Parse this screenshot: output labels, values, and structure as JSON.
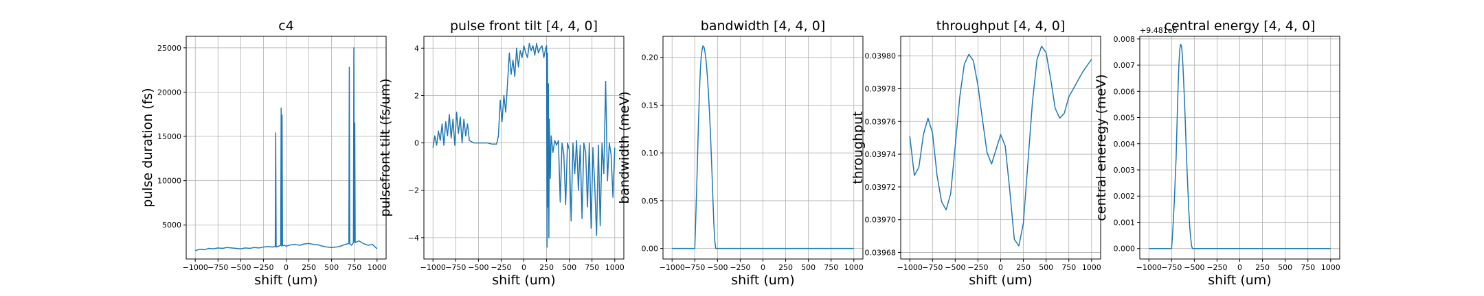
{
  "chart_data": [
    {
      "type": "line",
      "title": "c4",
      "xlabel": "shift (um)",
      "ylabel": "pulse duration (fs)",
      "xlim": [
        -1100,
        1100
      ],
      "ylim": [
        1150,
        26300
      ],
      "xticks": [
        -1000,
        -750,
        -500,
        -250,
        0,
        250,
        500,
        750,
        1000
      ],
      "yticks": [
        5000,
        10000,
        15000,
        20000,
        25000
      ],
      "grid": true,
      "color": "#1f77b4",
      "x": [
        -1000,
        -950,
        -900,
        -850,
        -800,
        -750,
        -700,
        -650,
        -600,
        -550,
        -500,
        -450,
        -400,
        -350,
        -300,
        -250,
        -200,
        -150,
        -120,
        -115,
        -110,
        -100,
        -80,
        -60,
        -55,
        -50,
        -45,
        -40,
        -30,
        -20,
        0,
        50,
        100,
        150,
        200,
        250,
        300,
        350,
        400,
        450,
        500,
        550,
        600,
        650,
        690,
        695,
        700,
        705,
        720,
        740,
        745,
        750,
        755,
        760,
        800,
        850,
        900,
        950,
        1000
      ],
      "y": [
        2100,
        2250,
        2200,
        2350,
        2300,
        2400,
        2350,
        2450,
        2400,
        2350,
        2300,
        2400,
        2350,
        2450,
        2400,
        2500,
        2550,
        2500,
        2550,
        15400,
        2500,
        2550,
        2600,
        2700,
        18200,
        2600,
        17400,
        2700,
        2650,
        2700,
        2600,
        2750,
        2800,
        2700,
        2850,
        2900,
        2800,
        2750,
        2600,
        2500,
        2450,
        2500,
        2600,
        2800,
        2900,
        22800,
        2900,
        2800,
        2700,
        3000,
        25000,
        3100,
        16500,
        3000,
        3200,
        2900,
        2700,
        2800,
        2300
      ]
    },
    {
      "type": "line",
      "title": "pulse front tilt [4, 4, 0]",
      "xlabel": "shift (um)",
      "ylabel": "pulsefront tilt (fs/um)",
      "xlim": [
        -1100,
        1100
      ],
      "ylim": [
        -4.9,
        4.5
      ],
      "xticks": [
        -1000,
        -750,
        -500,
        -250,
        0,
        250,
        500,
        750,
        1000
      ],
      "yticks": [
        -4,
        -2,
        0,
        2,
        4
      ],
      "grid": true,
      "color": "#1f77b4",
      "x": [
        -1000,
        -980,
        -960,
        -940,
        -920,
        -900,
        -880,
        -860,
        -840,
        -820,
        -800,
        -780,
        -760,
        -740,
        -720,
        -700,
        -680,
        -660,
        -640,
        -620,
        -600,
        -550,
        -500,
        -450,
        -400,
        -350,
        -300,
        -280,
        -260,
        -240,
        -220,
        -200,
        -180,
        -160,
        -140,
        -120,
        -100,
        -80,
        -60,
        -40,
        -20,
        0,
        20,
        40,
        60,
        80,
        100,
        120,
        140,
        160,
        180,
        200,
        220,
        240,
        250,
        255,
        260,
        265,
        270,
        275,
        280,
        290,
        300,
        320,
        340,
        360,
        380,
        400,
        420,
        440,
        460,
        480,
        500,
        520,
        540,
        560,
        580,
        600,
        620,
        640,
        660,
        680,
        700,
        720,
        740,
        760,
        780,
        800,
        820,
        840,
        860,
        880,
        900,
        920,
        940,
        960,
        980,
        1000
      ],
      "y": [
        -0.2,
        0.3,
        -0.1,
        0.5,
        0.1,
        0.8,
        -0.1,
        0.9,
        0.3,
        1.2,
        0.2,
        1.0,
        -0.1,
        1.3,
        0.4,
        1.1,
        0.0,
        1.0,
        0.3,
        0.8,
        0.1,
        0.0,
        0.0,
        0.0,
        0.0,
        -0.05,
        -0.05,
        0.3,
        1.8,
        0.9,
        2.0,
        1.3,
        2.5,
        3.8,
        2.9,
        3.5,
        2.8,
        4.0,
        3.2,
        3.9,
        3.6,
        4.1,
        3.8,
        3.6,
        4.2,
        3.9,
        4.1,
        3.7,
        4.2,
        3.8,
        4.0,
        4.1,
        3.6,
        4.0,
        4.1,
        -4.4,
        3.8,
        -2.7,
        2.5,
        -4.0,
        1.0,
        -1.5,
        0.3,
        -0.4,
        0.1,
        -0.1,
        0.1,
        -2.5,
        0.0,
        -0.5,
        -2.6,
        0.0,
        -0.3,
        -3.3,
        0.0,
        -1.3,
        0.1,
        -2.0,
        -0.1,
        -3.2,
        0.0,
        -0.4,
        -2.7,
        0.0,
        -3.6,
        -0.2,
        -1.8,
        -3.9,
        -0.1,
        -3.5,
        0.0,
        -1.3,
        2.6,
        -1.6,
        0.0,
        -0.5,
        -2.3,
        -0.2
      ]
    },
    {
      "type": "line",
      "title": "bandwidth [4, 4, 0]",
      "xlabel": "shift (um)",
      "ylabel": "bandwidth (meV)",
      "xlim": [
        -1100,
        1100
      ],
      "ylim": [
        -0.011,
        0.222
      ],
      "xticks": [
        -1000,
        -750,
        -500,
        -250,
        0,
        250,
        500,
        750,
        1000
      ],
      "yticks": [
        0.0,
        0.05,
        0.1,
        0.15,
        0.2
      ],
      "ytick_labels": [
        "0.00",
        "0.05",
        "0.10",
        "0.15",
        "0.20"
      ],
      "grid": true,
      "color": "#1f77b4",
      "x": [
        -1000,
        -800,
        -750,
        -740,
        -730,
        -720,
        -710,
        -700,
        -690,
        -680,
        -670,
        -660,
        -650,
        -640,
        -630,
        -620,
        -610,
        -600,
        -590,
        -580,
        -570,
        -560,
        -550,
        -540,
        -530,
        -520,
        -500,
        0,
        1000
      ],
      "y": [
        0.0,
        0.0,
        0.0,
        0.03,
        0.06,
        0.095,
        0.13,
        0.16,
        0.185,
        0.2,
        0.208,
        0.212,
        0.211,
        0.207,
        0.2,
        0.19,
        0.178,
        0.163,
        0.145,
        0.125,
        0.102,
        0.077,
        0.05,
        0.025,
        0.008,
        0.0,
        0.0,
        0.0,
        0.0
      ]
    },
    {
      "type": "line",
      "title": "throughput [4, 4, 0]",
      "xlabel": "shift (um)",
      "ylabel": "throughput",
      "xlim": [
        -1100,
        1100
      ],
      "ylim": [
        0.039676,
        0.039812
      ],
      "xticks": [
        -1000,
        -750,
        -500,
        -250,
        0,
        250,
        500,
        750,
        1000
      ],
      "yticks": [
        0.03968,
        0.0397,
        0.03972,
        0.03974,
        0.03976,
        0.03978,
        0.0398
      ],
      "ytick_labels": [
        "0.03968",
        "0.03970",
        "0.03972",
        "0.03974",
        "0.03976",
        "0.03978",
        "0.03980"
      ],
      "grid": true,
      "color": "#1f77b4",
      "x": [
        -1000,
        -950,
        -900,
        -850,
        -800,
        -750,
        -700,
        -650,
        -600,
        -550,
        -500,
        -450,
        -400,
        -350,
        -300,
        -250,
        -200,
        -150,
        -100,
        -50,
        0,
        50,
        100,
        150,
        200,
        250,
        300,
        350,
        400,
        450,
        500,
        550,
        600,
        650,
        700,
        750,
        800,
        850,
        900,
        950,
        1000
      ],
      "y": [
        0.039751,
        0.039727,
        0.039732,
        0.039752,
        0.039762,
        0.039753,
        0.039727,
        0.039711,
        0.039706,
        0.039716,
        0.039745,
        0.039775,
        0.039795,
        0.039801,
        0.039797,
        0.039782,
        0.039761,
        0.039741,
        0.039734,
        0.039743,
        0.039752,
        0.039745,
        0.039718,
        0.039688,
        0.039684,
        0.039698,
        0.039735,
        0.039772,
        0.039798,
        0.039806,
        0.039802,
        0.039786,
        0.039768,
        0.039762,
        0.039765,
        0.039775,
        0.03978,
        0.039785,
        0.03979,
        0.039794,
        0.039798
      ]
    },
    {
      "type": "line",
      "title": "central energy [4, 4, 0]",
      "xlabel": "shift (um)",
      "ylabel": "central eneregy (meV)",
      "offset_text": "+9.481e6",
      "xlim": [
        -1100,
        1100
      ],
      "ylim": [
        -0.0004,
        0.0081
      ],
      "xticks": [
        -1000,
        -750,
        -500,
        -250,
        0,
        250,
        500,
        750,
        1000
      ],
      "yticks": [
        0,
        0.001,
        0.002,
        0.003,
        0.004,
        0.005,
        0.006,
        0.007,
        0.008
      ],
      "ytick_labels": [
        "0.000",
        "0.001",
        "0.002",
        "0.003",
        "0.004",
        "0.005",
        "0.006",
        "0.007",
        "0.008"
      ],
      "grid": true,
      "color": "#1f77b4",
      "x": [
        -1000,
        -800,
        -750,
        -740,
        -720,
        -700,
        -690,
        -680,
        -670,
        -660,
        -650,
        -640,
        -630,
        -620,
        -610,
        -600,
        -590,
        -580,
        -570,
        -560,
        -550,
        -540,
        -530,
        -520,
        -500,
        0,
        1000
      ],
      "y": [
        0.0,
        0.0,
        0.0,
        0.0005,
        0.0018,
        0.0035,
        0.0048,
        0.006,
        0.007,
        0.0076,
        0.0078,
        0.0077,
        0.0073,
        0.0066,
        0.0058,
        0.0049,
        0.0039,
        0.003,
        0.0022,
        0.0014,
        0.0008,
        0.0004,
        0.0001,
        0.0,
        0.0,
        0.0,
        0.0
      ]
    }
  ]
}
